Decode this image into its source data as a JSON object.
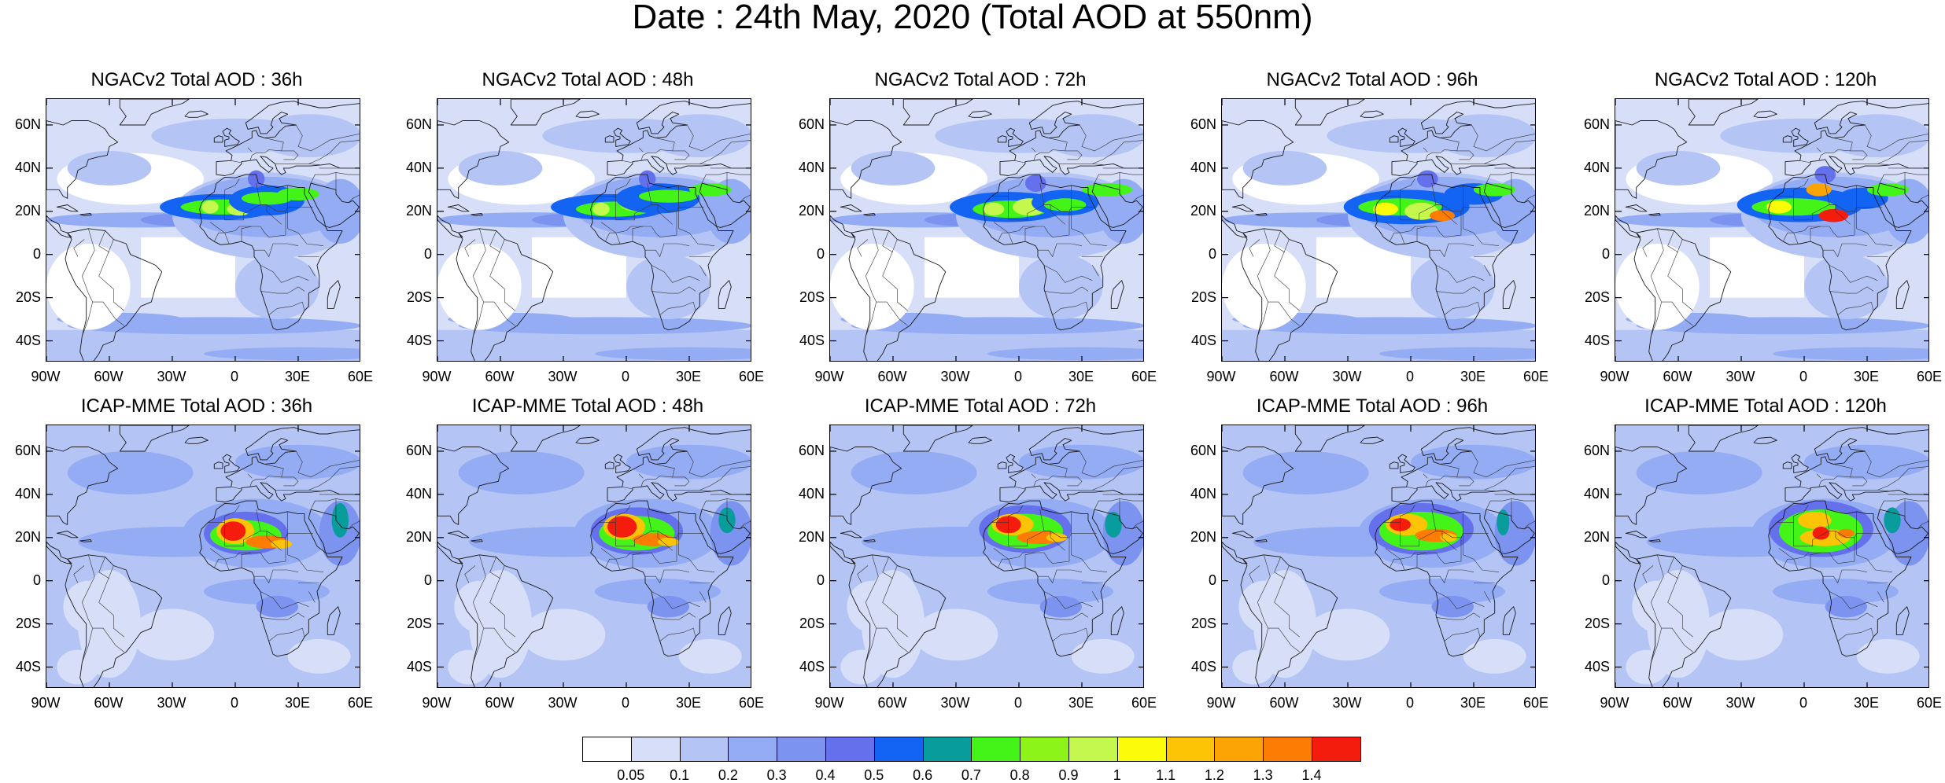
{
  "title": "Date : 24th May, 2020 (Total AOD at 550nm)",
  "lat_labels": [
    "60N",
    "40N",
    "20N",
    "0",
    "20S",
    "40S"
  ],
  "lat_values": [
    60,
    40,
    20,
    0,
    -20,
    -40
  ],
  "lon_labels": [
    "90W",
    "60W",
    "30W",
    "0",
    "30E",
    "60E"
  ],
  "lon_values": [
    -90,
    -60,
    -30,
    0,
    30,
    60
  ],
  "map_extent": {
    "lon": [
      -90,
      60
    ],
    "lat": [
      -50,
      72
    ]
  },
  "panels": [
    {
      "row": 0,
      "col": 0,
      "title": "NGACv2 Total AOD : 36h",
      "model": "ngac",
      "lead": 36
    },
    {
      "row": 0,
      "col": 1,
      "title": "NGACv2 Total AOD : 48h",
      "model": "ngac",
      "lead": 48
    },
    {
      "row": 0,
      "col": 2,
      "title": "NGACv2 Total AOD : 72h",
      "model": "ngac",
      "lead": 72
    },
    {
      "row": 0,
      "col": 3,
      "title": "NGACv2 Total AOD : 96h",
      "model": "ngac",
      "lead": 96
    },
    {
      "row": 0,
      "col": 4,
      "title": "NGACv2 Total AOD : 120h",
      "model": "ngac",
      "lead": 120
    },
    {
      "row": 1,
      "col": 0,
      "title": "ICAP-MME Total AOD : 36h",
      "model": "icap",
      "lead": 36
    },
    {
      "row": 1,
      "col": 1,
      "title": "ICAP-MME Total AOD : 48h",
      "model": "icap",
      "lead": 48
    },
    {
      "row": 1,
      "col": 2,
      "title": "ICAP-MME Total AOD : 72h",
      "model": "icap",
      "lead": 72
    },
    {
      "row": 1,
      "col": 3,
      "title": "ICAP-MME Total AOD : 96h",
      "model": "icap",
      "lead": 96
    },
    {
      "row": 1,
      "col": 4,
      "title": "ICAP-MME Total AOD : 120h",
      "model": "icap",
      "lead": 120
    }
  ],
  "colorbar": {
    "labels": [
      "0.05",
      "0.1",
      "0.2",
      "0.3",
      "0.4",
      "0.5",
      "0.6",
      "0.7",
      "0.8",
      "0.9",
      "1",
      "1.1",
      "1.2",
      "1.3",
      "1.4"
    ],
    "colors": [
      "#ffffff",
      "#d6def8",
      "#b4c4f4",
      "#94acf4",
      "#7c94f0",
      "#6470ec",
      "#1464f4",
      "#089c9c",
      "#44f418",
      "#8cf418",
      "#c4f84c",
      "#fcfc08",
      "#fcc404",
      "#fca404",
      "#fc7c04",
      "#f41c0c"
    ]
  }
}
